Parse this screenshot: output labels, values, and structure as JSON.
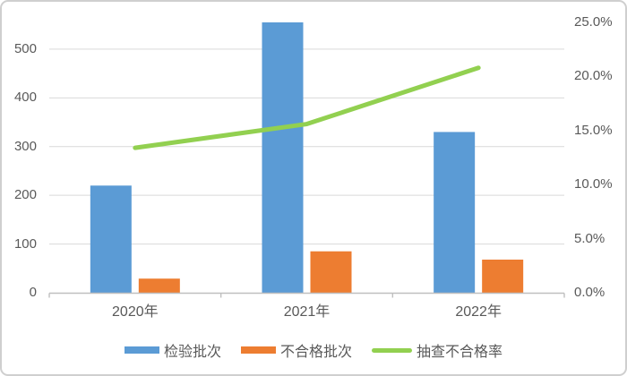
{
  "chart_data": {
    "type": "bar",
    "subtype": "combo bar + line, dual axis",
    "title": "",
    "categories": [
      "2020年",
      "2021年",
      "2022年"
    ],
    "series": [
      {
        "name": "检验批次",
        "type": "bar",
        "axis": "left",
        "color": "#5B9BD5",
        "values": [
          220,
          555,
          330
        ]
      },
      {
        "name": "不合格批次",
        "type": "bar",
        "axis": "left",
        "color": "#ED7D31",
        "values": [
          29,
          85,
          68
        ]
      },
      {
        "name": "抽查不合格率",
        "type": "line",
        "axis": "right",
        "color": "#92D050",
        "values": [
          13.4,
          15.6,
          20.8
        ],
        "unit": "%"
      }
    ],
    "left_axis": {
      "ticks": [
        0,
        100,
        200,
        300,
        400,
        500
      ],
      "range": [
        0,
        555
      ]
    },
    "right_axis": {
      "tick_labels": [
        "0.0%",
        "5.0%",
        "10.0%",
        "15.0%",
        "20.0%",
        "25.0%"
      ],
      "tick_values_percent": [
        0,
        5,
        10,
        15,
        20,
        25
      ],
      "range_percent": [
        0,
        25
      ]
    },
    "grid": true,
    "legend_position": "bottom"
  },
  "colors": {
    "bar_blue": "#5B9BD5",
    "bar_orange": "#ED7D31",
    "line_green": "#92D050",
    "axis_text": "#595959",
    "gridline": "#D9D9D9",
    "axis_line": "#BFBFBF",
    "border": "#CFCFCF",
    "background": "#FFFFFF"
  }
}
